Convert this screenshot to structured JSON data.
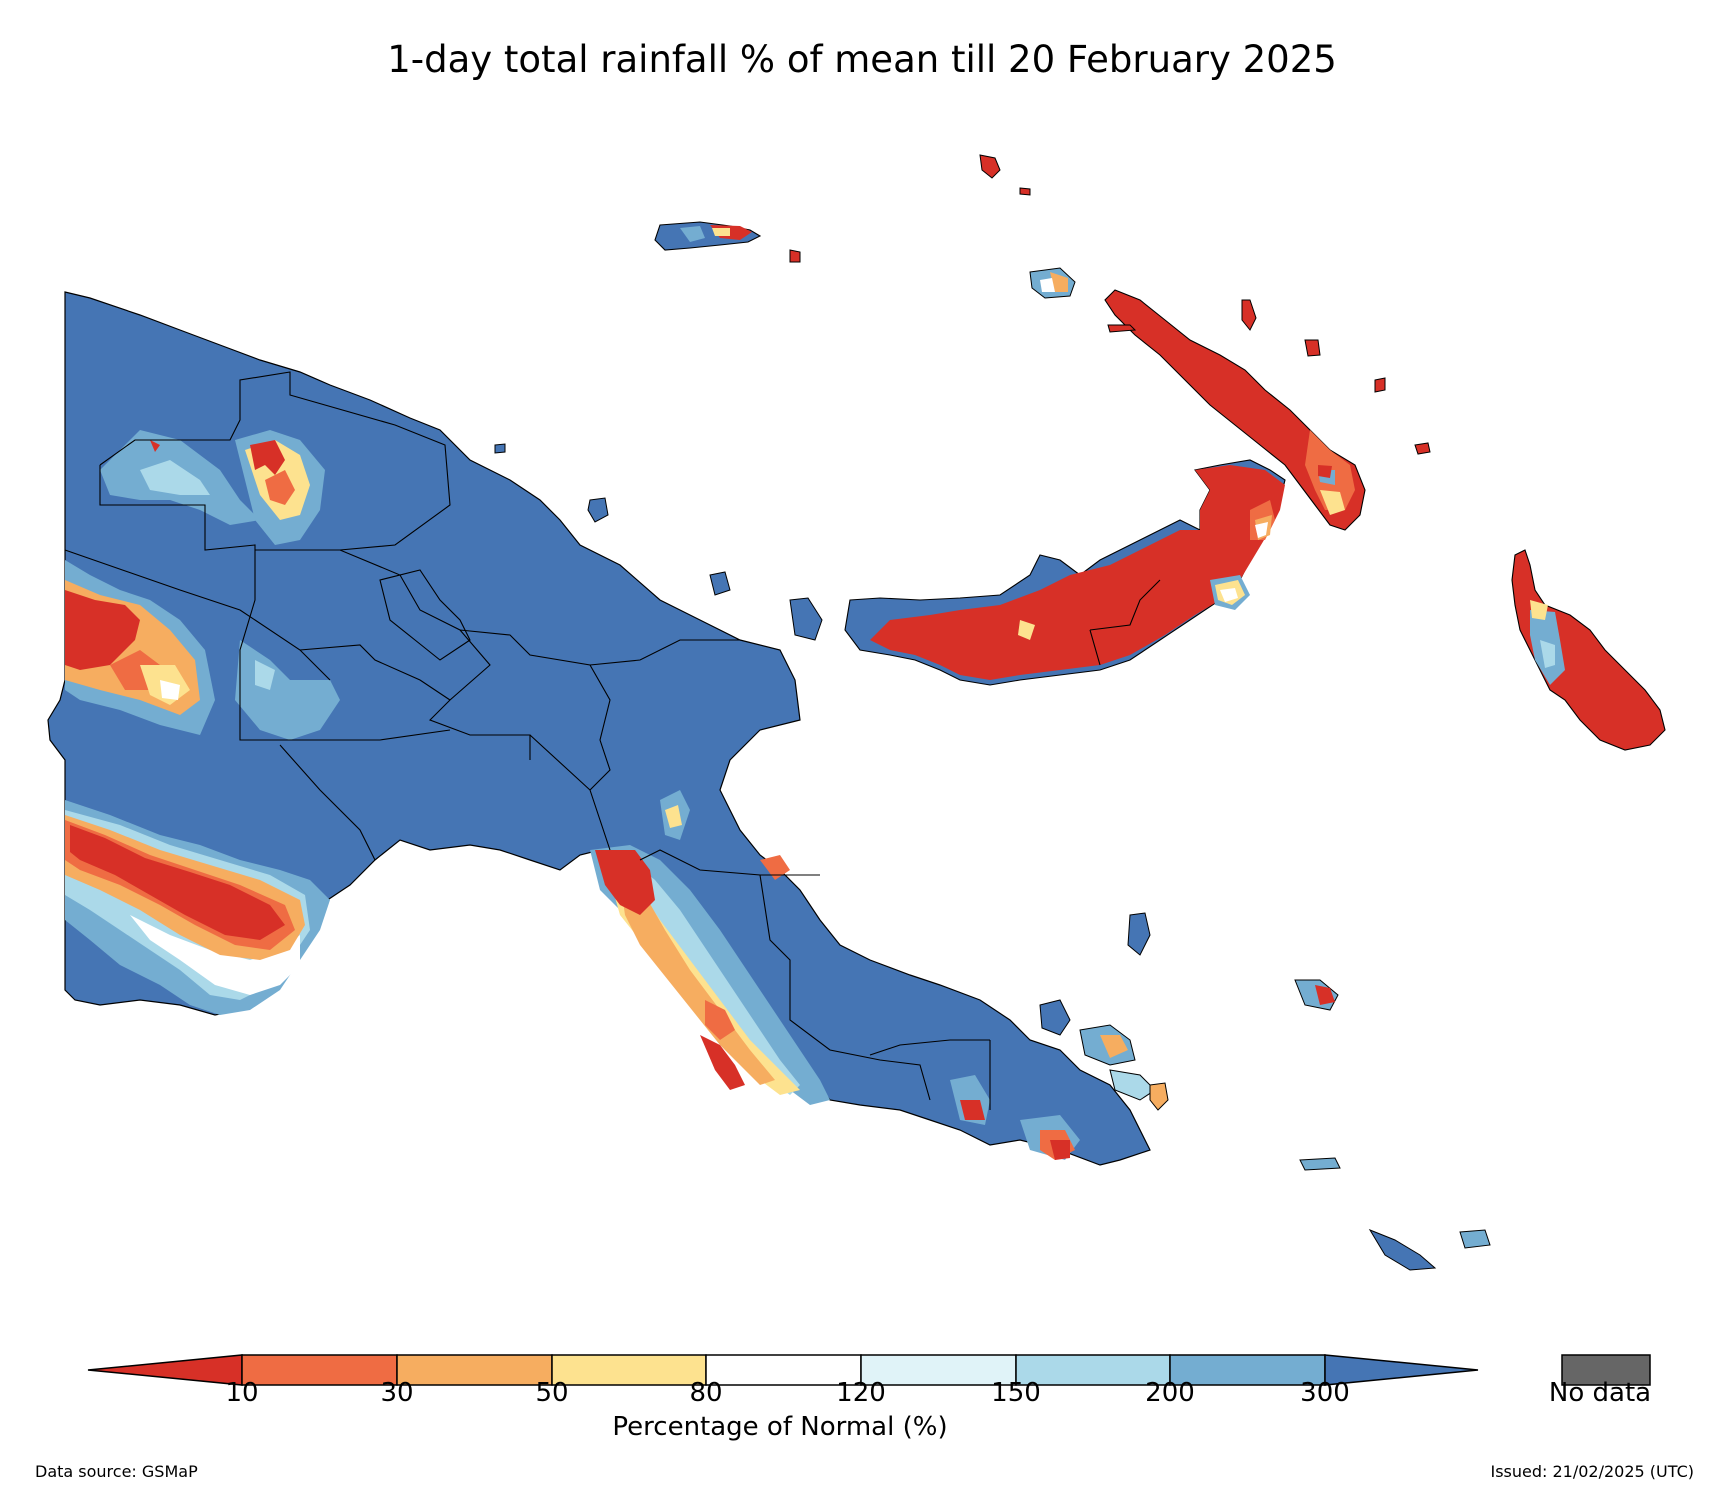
{
  "title": "1-day total rainfall % of mean till 20 February 2025",
  "colorbar": {
    "label": "Percentage of Normal (%)",
    "ticks": [
      "10",
      "30",
      "50",
      "80",
      "120",
      "150",
      "200",
      "300"
    ],
    "colors": [
      "#d73027",
      "#ef6c43",
      "#f6ad60",
      "#fde28f",
      "#ffffff",
      "#e0f3f8",
      "#abd9e9",
      "#74add1",
      "#4575b4"
    ],
    "no_data_label": "No data",
    "no_data_color": "#666666"
  },
  "footer": {
    "source": "Data source: GSMaP",
    "issued": "Issued: 21/02/2025 (UTC)"
  },
  "map_colors": {
    "land_base": "#4575b4",
    "very_dry": "#d73027",
    "dry": "#ef6c43",
    "moderate": "#f6ad60",
    "near_normal_low": "#fde28f",
    "normal": "#ffffff",
    "wet_light": "#abd9e9",
    "wet": "#74add1",
    "border": "#000000"
  }
}
